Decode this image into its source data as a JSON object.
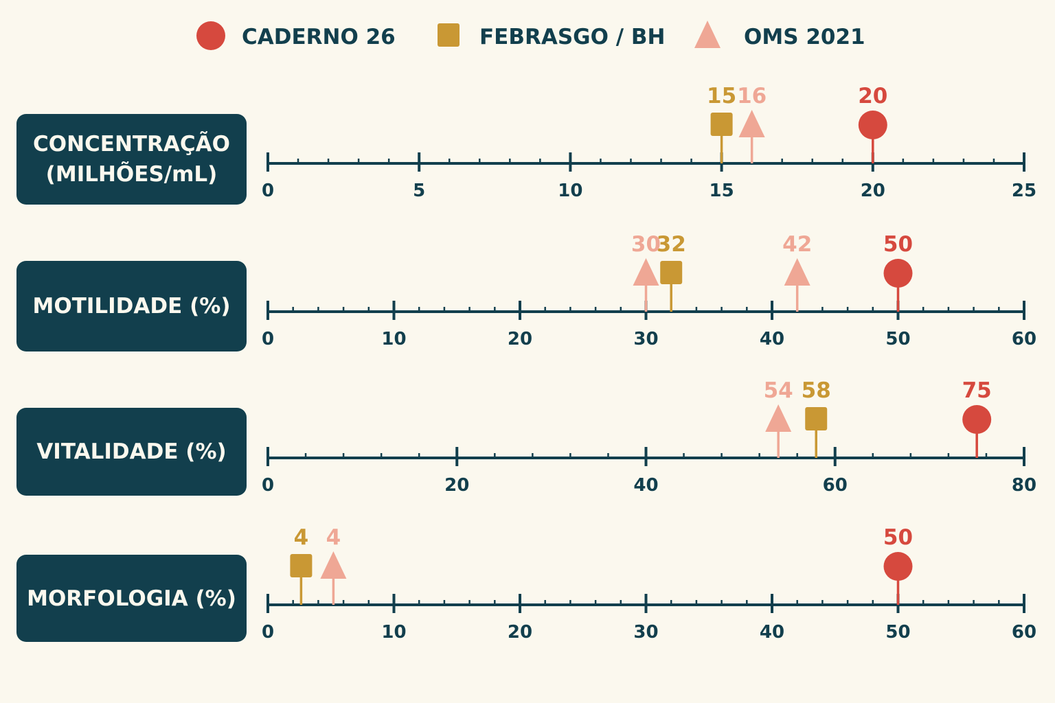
{
  "colors": {
    "background": "#fbf8ee",
    "navy": "#123f4d",
    "caderno": "#d6493e",
    "febrasgo": "#c99834",
    "oms": "#efa795",
    "label_caderno": "#d6493e",
    "label_febrasgo": "#c99834",
    "label_oms": "#efa795"
  },
  "legend": [
    {
      "name": "CADERNO 26",
      "shape": "circle",
      "color_key": "caderno"
    },
    {
      "name": "FEBRASGO / BH",
      "shape": "square",
      "color_key": "febrasgo"
    },
    {
      "name": "OMS 2021",
      "shape": "triangle",
      "color_key": "oms"
    }
  ],
  "rows": [
    {
      "label": "CONCENTRAÇÃO\n(MILHÕES/mL)"
    },
    {
      "label": "MOTILIDADE (%)"
    },
    {
      "label": "VITALIDADE (%)"
    },
    {
      "label": "MORFOLOGIA (%)"
    }
  ],
  "chart_data": [
    {
      "type": "scatter",
      "title": "CONCENTRAÇÃO\n(MILHÕES/mL)",
      "xlim": [
        0,
        25
      ],
      "major_ticks": [
        0,
        5,
        10,
        15,
        20,
        25
      ],
      "minor_step": 1,
      "series": [
        {
          "name": "CADERNO 26",
          "value": 20
        },
        {
          "name": "FEBRASGO / BH",
          "value": 15
        },
        {
          "name": "OMS 2021",
          "value": 16
        }
      ]
    },
    {
      "type": "scatter",
      "title": "MOTILIDADE (%)",
      "xlim": [
        0,
        60
      ],
      "major_ticks": [
        0,
        10,
        20,
        30,
        40,
        50,
        60
      ],
      "minor_step": 2,
      "series": [
        {
          "name": "CADERNO 26",
          "value": 50
        },
        {
          "name": "FEBRASGO / BH",
          "value": 32
        },
        {
          "name": "OMS 2021",
          "value": 30
        },
        {
          "name": "OMS 2021",
          "value": 42
        }
      ]
    },
    {
      "type": "scatter",
      "title": "VITALIDADE (%)",
      "xlim": [
        0,
        80
      ],
      "major_ticks": [
        0,
        20,
        40,
        60,
        80
      ],
      "minor_step": 4,
      "series": [
        {
          "name": "CADERNO 26",
          "value": 75
        },
        {
          "name": "FEBRASGO / BH",
          "value": 58
        },
        {
          "name": "OMS 2021",
          "value": 54
        }
      ]
    },
    {
      "type": "scatter",
      "title": "MORFOLOGIA (%)",
      "xlim": [
        0,
        60
      ],
      "major_ticks": [
        0,
        10,
        20,
        30,
        40,
        50,
        60
      ],
      "minor_step": 2,
      "series": [
        {
          "name": "CADERNO 26",
          "value": 50
        },
        {
          "name": "FEBRASGO / BH",
          "value": 4
        },
        {
          "name": "OMS 2021",
          "value": 4
        }
      ]
    }
  ]
}
